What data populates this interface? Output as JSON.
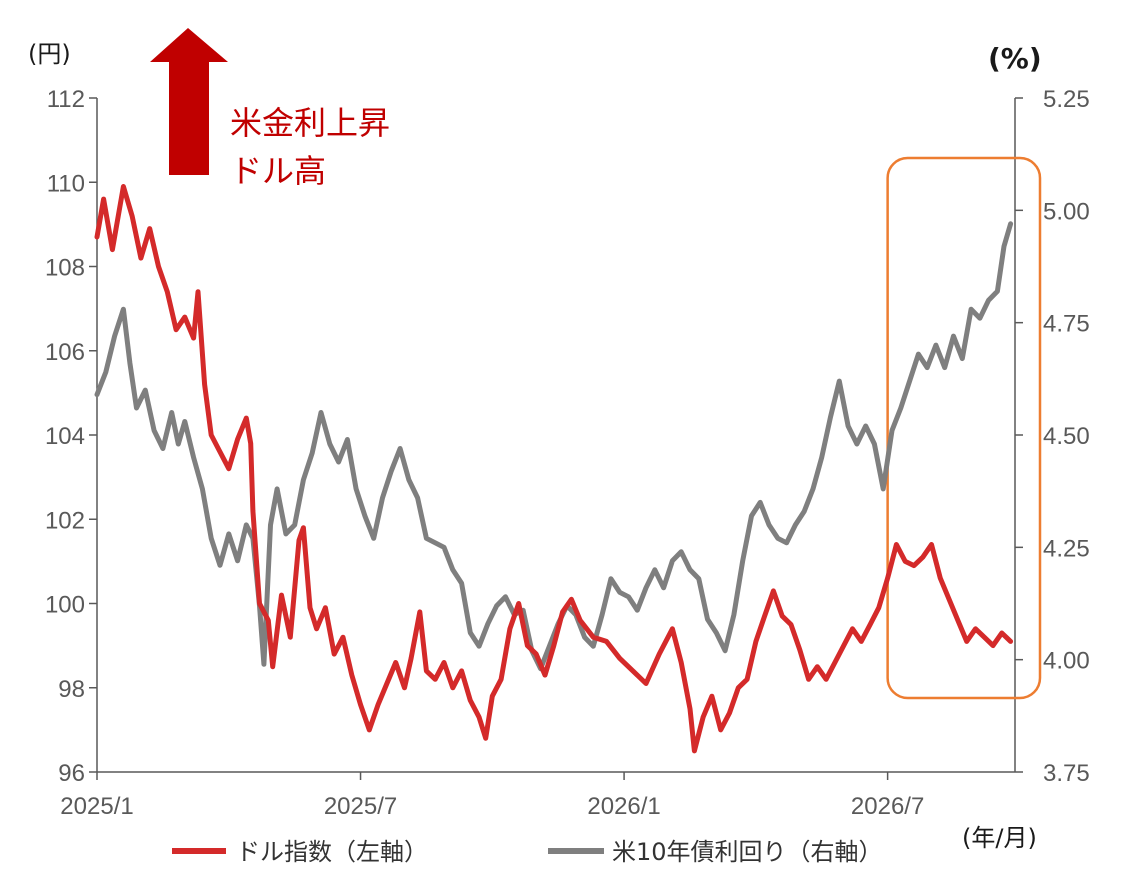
{
  "chart_data": {
    "type": "line",
    "left_unit": "(円)",
    "right_unit": "(%)",
    "x_unit": "(年/月)",
    "x_ticks": [
      "2025/1",
      "2025/7",
      "2026/1",
      "2026/7"
    ],
    "left_ticks": [
      "96",
      "98",
      "100",
      "102",
      "104",
      "106",
      "108",
      "110",
      "112"
    ],
    "right_ticks": [
      "3.75",
      "4.00",
      "4.25",
      "4.50",
      "4.75",
      "5.00",
      "5.25"
    ],
    "ylim_left": [
      96,
      112
    ],
    "ylim_right": [
      3.75,
      5.25
    ],
    "annotation": {
      "line1": "米金利上昇",
      "line2": "ドル高"
    },
    "highlight": {
      "x_start": 18.0,
      "x_end": 20.9,
      "color": "#ed7d31"
    },
    "series": [
      {
        "name": "ドル指数（左軸）",
        "axis": "left",
        "color": "#d42a2a",
        "points": [
          [
            0.0,
            108.7
          ],
          [
            0.15,
            109.6
          ],
          [
            0.35,
            108.4
          ],
          [
            0.6,
            109.9
          ],
          [
            0.8,
            109.2
          ],
          [
            1.0,
            108.2
          ],
          [
            1.2,
            108.9
          ],
          [
            1.4,
            108.0
          ],
          [
            1.6,
            107.4
          ],
          [
            1.8,
            106.5
          ],
          [
            2.0,
            106.8
          ],
          [
            2.2,
            106.3
          ],
          [
            2.3,
            107.4
          ],
          [
            2.45,
            105.2
          ],
          [
            2.6,
            104.0
          ],
          [
            2.8,
            103.6
          ],
          [
            3.0,
            103.2
          ],
          [
            3.2,
            103.9
          ],
          [
            3.4,
            104.4
          ],
          [
            3.5,
            103.8
          ],
          [
            3.55,
            102.2
          ],
          [
            3.7,
            100.0
          ],
          [
            3.9,
            99.6
          ],
          [
            4.0,
            98.5
          ],
          [
            4.2,
            100.2
          ],
          [
            4.4,
            99.2
          ],
          [
            4.6,
            101.5
          ],
          [
            4.7,
            101.8
          ],
          [
            4.85,
            99.9
          ],
          [
            5.0,
            99.4
          ],
          [
            5.2,
            99.9
          ],
          [
            5.4,
            98.8
          ],
          [
            5.6,
            99.2
          ],
          [
            5.8,
            98.3
          ],
          [
            6.0,
            97.6
          ],
          [
            6.2,
            97.0
          ],
          [
            6.4,
            97.6
          ],
          [
            6.6,
            98.1
          ],
          [
            6.8,
            98.6
          ],
          [
            7.0,
            98.0
          ],
          [
            7.15,
            98.7
          ],
          [
            7.35,
            99.8
          ],
          [
            7.5,
            98.4
          ],
          [
            7.7,
            98.2
          ],
          [
            7.9,
            98.6
          ],
          [
            8.1,
            98.0
          ],
          [
            8.3,
            98.4
          ],
          [
            8.5,
            97.7
          ],
          [
            8.7,
            97.3
          ],
          [
            8.85,
            96.8
          ],
          [
            9.0,
            97.8
          ],
          [
            9.2,
            98.2
          ],
          [
            9.4,
            99.4
          ],
          [
            9.6,
            100.0
          ],
          [
            9.8,
            99.0
          ],
          [
            10.0,
            98.8
          ],
          [
            10.2,
            98.3
          ],
          [
            10.4,
            99.0
          ],
          [
            10.6,
            99.8
          ],
          [
            10.8,
            100.1
          ],
          [
            11.0,
            99.6
          ],
          [
            11.3,
            99.2
          ],
          [
            11.6,
            99.1
          ],
          [
            11.9,
            98.7
          ],
          [
            12.2,
            98.4
          ],
          [
            12.5,
            98.1
          ],
          [
            12.8,
            98.8
          ],
          [
            13.1,
            99.4
          ],
          [
            13.3,
            98.6
          ],
          [
            13.5,
            97.5
          ],
          [
            13.6,
            96.5
          ],
          [
            13.8,
            97.3
          ],
          [
            14.0,
            97.8
          ],
          [
            14.2,
            97.0
          ],
          [
            14.4,
            97.4
          ],
          [
            14.6,
            98.0
          ],
          [
            14.8,
            98.2
          ],
          [
            15.0,
            99.1
          ],
          [
            15.2,
            99.7
          ],
          [
            15.4,
            100.3
          ],
          [
            15.6,
            99.7
          ],
          [
            15.8,
            99.5
          ],
          [
            16.0,
            98.9
          ],
          [
            16.2,
            98.2
          ],
          [
            16.4,
            98.5
          ],
          [
            16.6,
            98.2
          ],
          [
            16.8,
            98.6
          ],
          [
            17.0,
            99.0
          ],
          [
            17.2,
            99.4
          ],
          [
            17.4,
            99.1
          ],
          [
            17.6,
            99.5
          ],
          [
            17.8,
            99.9
          ],
          [
            18.0,
            100.6
          ],
          [
            18.2,
            101.4
          ],
          [
            18.4,
            101.0
          ],
          [
            18.6,
            100.9
          ],
          [
            18.8,
            101.1
          ],
          [
            19.0,
            101.4
          ],
          [
            19.2,
            100.6
          ],
          [
            19.4,
            100.1
          ],
          [
            19.6,
            99.6
          ],
          [
            19.8,
            99.1
          ],
          [
            20.0,
            99.4
          ],
          [
            20.2,
            99.2
          ],
          [
            20.4,
            99.0
          ],
          [
            20.6,
            99.3
          ],
          [
            20.8,
            99.1
          ]
        ]
      },
      {
        "name": "米10年債利回り（右軸）",
        "axis": "right",
        "color": "#7f7f7f",
        "points": [
          [
            0.0,
            4.59
          ],
          [
            0.2,
            4.64
          ],
          [
            0.4,
            4.72
          ],
          [
            0.6,
            4.78
          ],
          [
            0.75,
            4.66
          ],
          [
            0.9,
            4.56
          ],
          [
            1.1,
            4.6
          ],
          [
            1.3,
            4.51
          ],
          [
            1.5,
            4.47
          ],
          [
            1.7,
            4.55
          ],
          [
            1.85,
            4.48
          ],
          [
            2.0,
            4.53
          ],
          [
            2.2,
            4.45
          ],
          [
            2.4,
            4.38
          ],
          [
            2.6,
            4.27
          ],
          [
            2.8,
            4.21
          ],
          [
            3.0,
            4.28
          ],
          [
            3.2,
            4.22
          ],
          [
            3.4,
            4.3
          ],
          [
            3.55,
            4.27
          ],
          [
            3.7,
            4.12
          ],
          [
            3.8,
            3.99
          ],
          [
            3.95,
            4.3
          ],
          [
            4.1,
            4.38
          ],
          [
            4.3,
            4.28
          ],
          [
            4.5,
            4.3
          ],
          [
            4.7,
            4.4
          ],
          [
            4.9,
            4.46
          ],
          [
            5.1,
            4.55
          ],
          [
            5.3,
            4.48
          ],
          [
            5.5,
            4.44
          ],
          [
            5.7,
            4.49
          ],
          [
            5.9,
            4.38
          ],
          [
            6.1,
            4.32
          ],
          [
            6.3,
            4.27
          ],
          [
            6.5,
            4.36
          ],
          [
            6.7,
            4.42
          ],
          [
            6.9,
            4.47
          ],
          [
            7.1,
            4.4
          ],
          [
            7.3,
            4.36
          ],
          [
            7.5,
            4.27
          ],
          [
            7.7,
            4.26
          ],
          [
            7.9,
            4.25
          ],
          [
            8.1,
            4.2
          ],
          [
            8.3,
            4.17
          ],
          [
            8.5,
            4.06
          ],
          [
            8.7,
            4.03
          ],
          [
            8.9,
            4.08
          ],
          [
            9.1,
            4.12
          ],
          [
            9.3,
            4.14
          ],
          [
            9.5,
            4.1
          ],
          [
            9.7,
            4.11
          ],
          [
            9.9,
            4.02
          ],
          [
            10.1,
            3.98
          ],
          [
            10.3,
            4.03
          ],
          [
            10.5,
            4.08
          ],
          [
            10.7,
            4.12
          ],
          [
            10.9,
            4.1
          ],
          [
            11.1,
            4.05
          ],
          [
            11.3,
            4.03
          ],
          [
            11.5,
            4.1
          ],
          [
            11.7,
            4.18
          ],
          [
            11.9,
            4.15
          ],
          [
            12.1,
            4.14
          ],
          [
            12.3,
            4.11
          ],
          [
            12.5,
            4.16
          ],
          [
            12.7,
            4.2
          ],
          [
            12.9,
            4.16
          ],
          [
            13.1,
            4.22
          ],
          [
            13.3,
            4.24
          ],
          [
            13.5,
            4.2
          ],
          [
            13.7,
            4.18
          ],
          [
            13.9,
            4.09
          ],
          [
            14.1,
            4.06
          ],
          [
            14.3,
            4.02
          ],
          [
            14.5,
            4.1
          ],
          [
            14.7,
            4.22
          ],
          [
            14.9,
            4.32
          ],
          [
            15.1,
            4.35
          ],
          [
            15.3,
            4.3
          ],
          [
            15.5,
            4.27
          ],
          [
            15.7,
            4.26
          ],
          [
            15.9,
            4.3
          ],
          [
            16.1,
            4.33
          ],
          [
            16.3,
            4.38
          ],
          [
            16.5,
            4.45
          ],
          [
            16.7,
            4.54
          ],
          [
            16.9,
            4.62
          ],
          [
            17.1,
            4.52
          ],
          [
            17.3,
            4.48
          ],
          [
            17.5,
            4.52
          ],
          [
            17.7,
            4.48
          ],
          [
            17.9,
            4.38
          ],
          [
            18.1,
            4.51
          ],
          [
            18.3,
            4.56
          ],
          [
            18.5,
            4.62
          ],
          [
            18.7,
            4.68
          ],
          [
            18.9,
            4.65
          ],
          [
            19.1,
            4.7
          ],
          [
            19.3,
            4.65
          ],
          [
            19.5,
            4.72
          ],
          [
            19.7,
            4.67
          ],
          [
            19.9,
            4.78
          ],
          [
            20.1,
            4.76
          ],
          [
            20.3,
            4.8
          ],
          [
            20.5,
            4.82
          ],
          [
            20.65,
            4.92
          ],
          [
            20.8,
            4.97
          ]
        ]
      }
    ]
  }
}
